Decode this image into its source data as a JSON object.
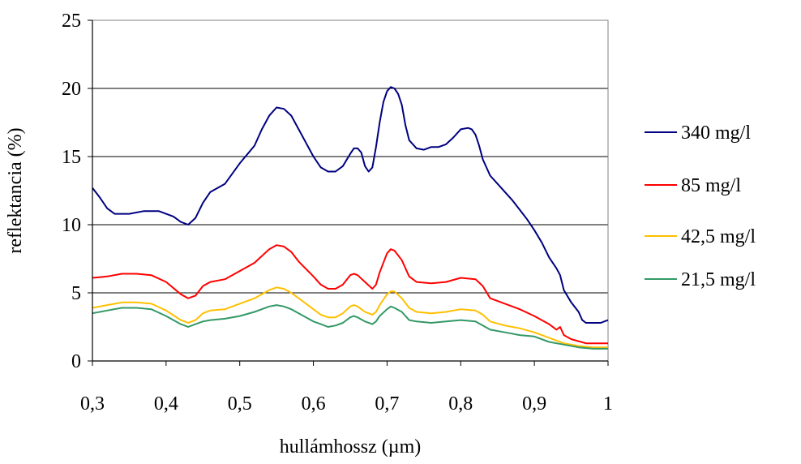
{
  "chart_data": {
    "type": "line",
    "title": "",
    "xlabel": "hullámhossz (µm)",
    "ylabel": "reflektancia (%)",
    "xlim": [
      0.3,
      1.0
    ],
    "ylim": [
      0,
      25
    ],
    "x_ticks": [
      "0,3",
      "0,4",
      "0,5",
      "0,6",
      "0,7",
      "0,8",
      "0,9",
      "1"
    ],
    "y_ticks": [
      "0",
      "5",
      "10",
      "15",
      "20",
      "25"
    ],
    "grid": "horizontal",
    "legend_position": "right",
    "series": [
      {
        "name": "340 mg/l",
        "color": "#000080",
        "points": [
          [
            0.3,
            12.7
          ],
          [
            0.31,
            12.0
          ],
          [
            0.32,
            11.2
          ],
          [
            0.33,
            10.8
          ],
          [
            0.35,
            10.8
          ],
          [
            0.37,
            11.0
          ],
          [
            0.39,
            11.0
          ],
          [
            0.41,
            10.6
          ],
          [
            0.42,
            10.2
          ],
          [
            0.43,
            10.0
          ],
          [
            0.44,
            10.5
          ],
          [
            0.45,
            11.6
          ],
          [
            0.46,
            12.4
          ],
          [
            0.48,
            13.0
          ],
          [
            0.5,
            14.5
          ],
          [
            0.52,
            15.8
          ],
          [
            0.53,
            17.0
          ],
          [
            0.54,
            18.0
          ],
          [
            0.55,
            18.6
          ],
          [
            0.56,
            18.5
          ],
          [
            0.57,
            18.0
          ],
          [
            0.58,
            17.0
          ],
          [
            0.59,
            16.0
          ],
          [
            0.6,
            15.0
          ],
          [
            0.61,
            14.2
          ],
          [
            0.62,
            13.9
          ],
          [
            0.63,
            13.9
          ],
          [
            0.64,
            14.3
          ],
          [
            0.65,
            15.2
          ],
          [
            0.655,
            15.6
          ],
          [
            0.66,
            15.6
          ],
          [
            0.665,
            15.3
          ],
          [
            0.67,
            14.3
          ],
          [
            0.675,
            13.9
          ],
          [
            0.68,
            14.2
          ],
          [
            0.685,
            15.7
          ],
          [
            0.69,
            17.5
          ],
          [
            0.695,
            19.0
          ],
          [
            0.7,
            19.8
          ],
          [
            0.705,
            20.1
          ],
          [
            0.71,
            20.0
          ],
          [
            0.715,
            19.6
          ],
          [
            0.72,
            18.8
          ],
          [
            0.725,
            17.3
          ],
          [
            0.73,
            16.2
          ],
          [
            0.74,
            15.6
          ],
          [
            0.75,
            15.5
          ],
          [
            0.76,
            15.7
          ],
          [
            0.77,
            15.7
          ],
          [
            0.78,
            15.9
          ],
          [
            0.79,
            16.4
          ],
          [
            0.8,
            17.0
          ],
          [
            0.81,
            17.1
          ],
          [
            0.815,
            17.0
          ],
          [
            0.82,
            16.6
          ],
          [
            0.825,
            15.8
          ],
          [
            0.83,
            14.8
          ],
          [
            0.84,
            13.6
          ],
          [
            0.85,
            13.0
          ],
          [
            0.86,
            12.4
          ],
          [
            0.87,
            11.8
          ],
          [
            0.88,
            11.1
          ],
          [
            0.89,
            10.4
          ],
          [
            0.9,
            9.6
          ],
          [
            0.91,
            8.7
          ],
          [
            0.92,
            7.6
          ],
          [
            0.93,
            6.8
          ],
          [
            0.935,
            6.3
          ],
          [
            0.94,
            5.2
          ],
          [
            0.95,
            4.3
          ],
          [
            0.96,
            3.6
          ],
          [
            0.965,
            3.0
          ],
          [
            0.97,
            2.8
          ],
          [
            0.98,
            2.8
          ],
          [
            0.99,
            2.8
          ],
          [
            1.0,
            3.0
          ]
        ]
      },
      {
        "name": "85 mg/l",
        "color": "#ff0000",
        "points": [
          [
            0.3,
            6.1
          ],
          [
            0.32,
            6.2
          ],
          [
            0.34,
            6.4
          ],
          [
            0.36,
            6.4
          ],
          [
            0.38,
            6.3
          ],
          [
            0.4,
            5.8
          ],
          [
            0.42,
            4.9
          ],
          [
            0.43,
            4.6
          ],
          [
            0.44,
            4.8
          ],
          [
            0.45,
            5.5
          ],
          [
            0.46,
            5.8
          ],
          [
            0.48,
            6.0
          ],
          [
            0.5,
            6.6
          ],
          [
            0.52,
            7.2
          ],
          [
            0.54,
            8.2
          ],
          [
            0.55,
            8.5
          ],
          [
            0.56,
            8.4
          ],
          [
            0.57,
            8.0
          ],
          [
            0.58,
            7.3
          ],
          [
            0.6,
            6.2
          ],
          [
            0.61,
            5.6
          ],
          [
            0.62,
            5.3
          ],
          [
            0.63,
            5.3
          ],
          [
            0.64,
            5.6
          ],
          [
            0.65,
            6.3
          ],
          [
            0.655,
            6.4
          ],
          [
            0.66,
            6.3
          ],
          [
            0.67,
            5.8
          ],
          [
            0.68,
            5.3
          ],
          [
            0.685,
            5.6
          ],
          [
            0.69,
            6.5
          ],
          [
            0.7,
            7.9
          ],
          [
            0.705,
            8.2
          ],
          [
            0.71,
            8.1
          ],
          [
            0.72,
            7.4
          ],
          [
            0.73,
            6.2
          ],
          [
            0.74,
            5.8
          ],
          [
            0.76,
            5.7
          ],
          [
            0.78,
            5.8
          ],
          [
            0.8,
            6.1
          ],
          [
            0.82,
            6.0
          ],
          [
            0.83,
            5.5
          ],
          [
            0.84,
            4.6
          ],
          [
            0.86,
            4.2
          ],
          [
            0.88,
            3.8
          ],
          [
            0.9,
            3.3
          ],
          [
            0.92,
            2.7
          ],
          [
            0.93,
            2.3
          ],
          [
            0.935,
            2.5
          ],
          [
            0.94,
            1.9
          ],
          [
            0.95,
            1.6
          ],
          [
            0.97,
            1.3
          ],
          [
            1.0,
            1.3
          ]
        ]
      },
      {
        "name": "42,5 mg/l",
        "color": "#ffc000",
        "points": [
          [
            0.3,
            3.9
          ],
          [
            0.32,
            4.1
          ],
          [
            0.34,
            4.3
          ],
          [
            0.36,
            4.3
          ],
          [
            0.38,
            4.2
          ],
          [
            0.4,
            3.7
          ],
          [
            0.42,
            3.0
          ],
          [
            0.43,
            2.8
          ],
          [
            0.44,
            3.0
          ],
          [
            0.45,
            3.5
          ],
          [
            0.46,
            3.7
          ],
          [
            0.48,
            3.8
          ],
          [
            0.5,
            4.2
          ],
          [
            0.52,
            4.6
          ],
          [
            0.54,
            5.2
          ],
          [
            0.55,
            5.4
          ],
          [
            0.56,
            5.3
          ],
          [
            0.57,
            5.0
          ],
          [
            0.58,
            4.6
          ],
          [
            0.6,
            3.8
          ],
          [
            0.61,
            3.4
          ],
          [
            0.62,
            3.2
          ],
          [
            0.63,
            3.2
          ],
          [
            0.64,
            3.5
          ],
          [
            0.65,
            4.0
          ],
          [
            0.655,
            4.1
          ],
          [
            0.66,
            4.0
          ],
          [
            0.67,
            3.6
          ],
          [
            0.68,
            3.4
          ],
          [
            0.685,
            3.6
          ],
          [
            0.69,
            4.1
          ],
          [
            0.7,
            4.9
          ],
          [
            0.705,
            5.1
          ],
          [
            0.71,
            5.1
          ],
          [
            0.72,
            4.6
          ],
          [
            0.73,
            3.9
          ],
          [
            0.74,
            3.6
          ],
          [
            0.76,
            3.5
          ],
          [
            0.78,
            3.6
          ],
          [
            0.8,
            3.8
          ],
          [
            0.82,
            3.7
          ],
          [
            0.83,
            3.4
          ],
          [
            0.84,
            2.9
          ],
          [
            0.86,
            2.6
          ],
          [
            0.88,
            2.4
          ],
          [
            0.9,
            2.1
          ],
          [
            0.92,
            1.7
          ],
          [
            0.94,
            1.3
          ],
          [
            0.96,
            1.1
          ],
          [
            0.98,
            1.0
          ],
          [
            1.0,
            1.0
          ]
        ]
      },
      {
        "name": "21,5 mg/l",
        "color": "#339966",
        "points": [
          [
            0.3,
            3.5
          ],
          [
            0.32,
            3.7
          ],
          [
            0.34,
            3.9
          ],
          [
            0.36,
            3.9
          ],
          [
            0.38,
            3.8
          ],
          [
            0.4,
            3.3
          ],
          [
            0.42,
            2.7
          ],
          [
            0.43,
            2.5
          ],
          [
            0.44,
            2.7
          ],
          [
            0.45,
            2.9
          ],
          [
            0.46,
            3.0
          ],
          [
            0.48,
            3.1
          ],
          [
            0.5,
            3.3
          ],
          [
            0.52,
            3.6
          ],
          [
            0.54,
            4.0
          ],
          [
            0.55,
            4.1
          ],
          [
            0.56,
            4.0
          ],
          [
            0.57,
            3.8
          ],
          [
            0.58,
            3.5
          ],
          [
            0.6,
            2.9
          ],
          [
            0.61,
            2.7
          ],
          [
            0.62,
            2.5
          ],
          [
            0.63,
            2.6
          ],
          [
            0.64,
            2.8
          ],
          [
            0.65,
            3.2
          ],
          [
            0.655,
            3.3
          ],
          [
            0.66,
            3.2
          ],
          [
            0.67,
            2.9
          ],
          [
            0.68,
            2.7
          ],
          [
            0.685,
            2.9
          ],
          [
            0.69,
            3.3
          ],
          [
            0.7,
            3.8
          ],
          [
            0.705,
            4.0
          ],
          [
            0.71,
            3.9
          ],
          [
            0.72,
            3.6
          ],
          [
            0.73,
            3.0
          ],
          [
            0.74,
            2.9
          ],
          [
            0.76,
            2.8
          ],
          [
            0.78,
            2.9
          ],
          [
            0.8,
            3.0
          ],
          [
            0.82,
            2.9
          ],
          [
            0.83,
            2.6
          ],
          [
            0.84,
            2.3
          ],
          [
            0.86,
            2.1
          ],
          [
            0.88,
            1.9
          ],
          [
            0.9,
            1.8
          ],
          [
            0.92,
            1.4
          ],
          [
            0.94,
            1.2
          ],
          [
            0.96,
            1.0
          ],
          [
            0.98,
            0.9
          ],
          [
            1.0,
            0.9
          ]
        ]
      }
    ]
  }
}
